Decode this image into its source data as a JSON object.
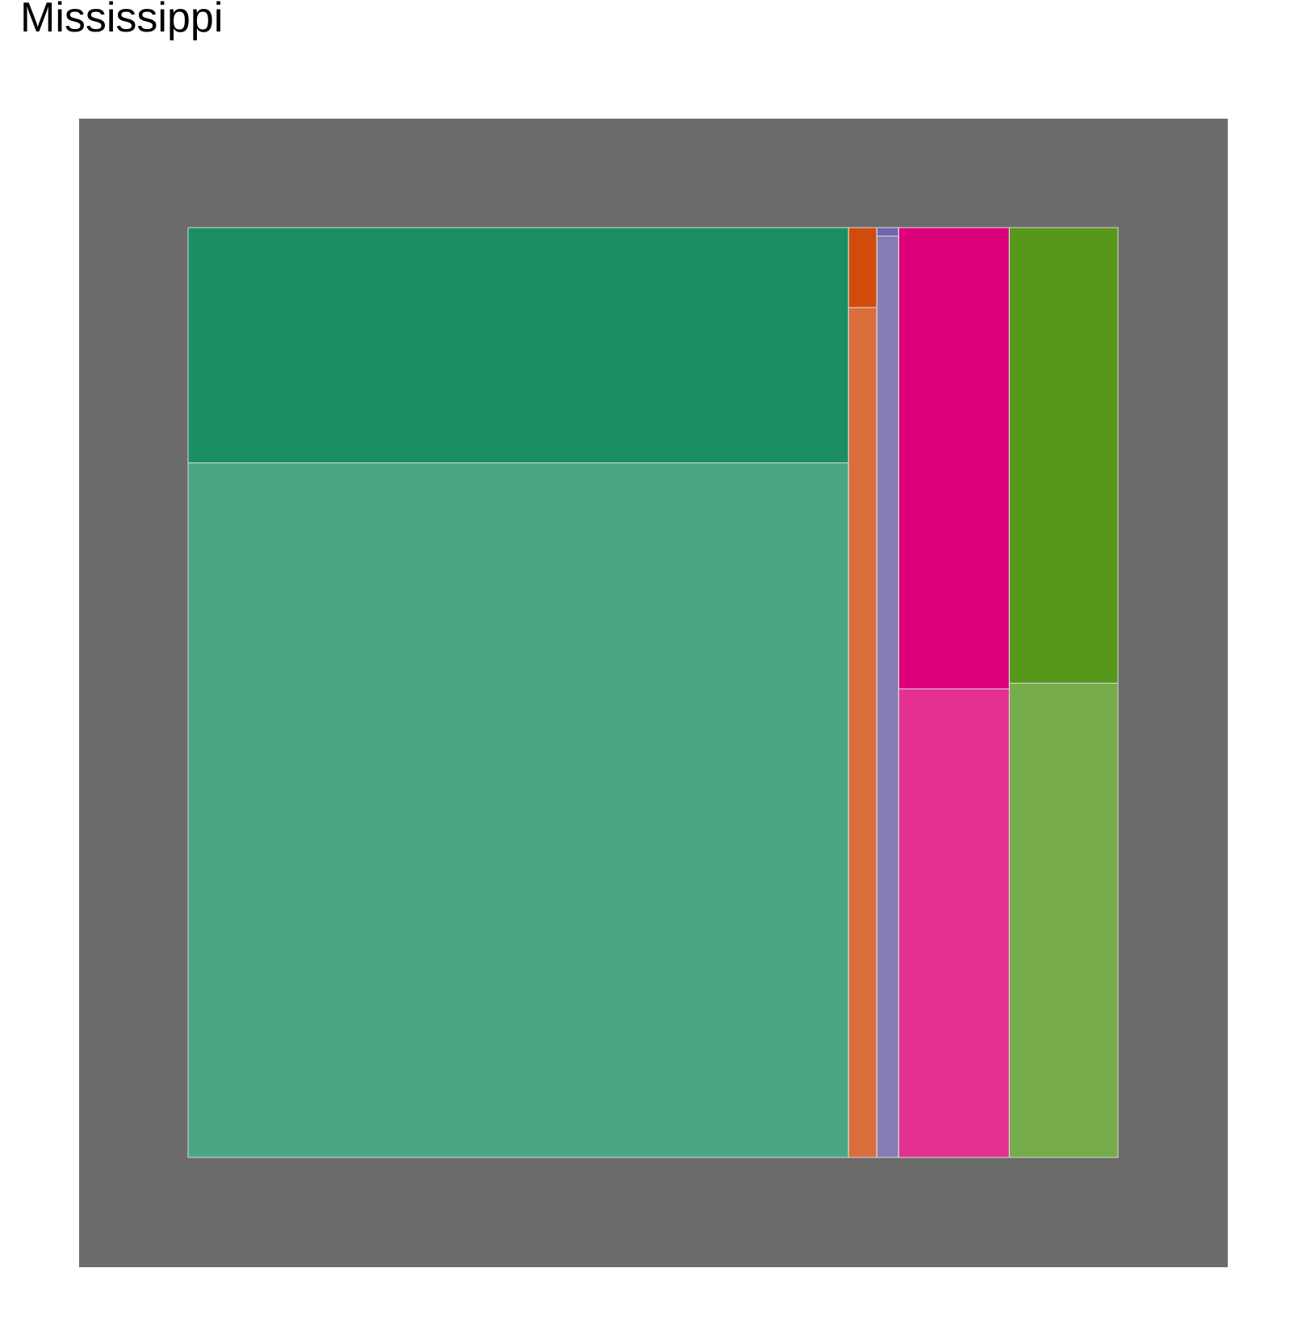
{
  "chart_data": {
    "type": "treemap",
    "title": "Mississippi",
    "panel_color": "#6b6b6b",
    "border_color": "#d9d9d9",
    "groups": [
      {
        "color": "#1b9e77",
        "children": [
          {
            "value": 25.3,
            "color": "#1b8e64"
          },
          {
            "value": 74.7,
            "color": "#4ca684"
          }
        ]
      },
      {
        "color": "#d95f02",
        "children": [
          {
            "value": 0.37,
            "color": "#d14c0c"
          },
          {
            "value": 3.93,
            "color": "#d96d3d"
          }
        ]
      },
      {
        "color": "#7570b3",
        "children": [
          {
            "value": 0.03,
            "color": "#6f67ae"
          },
          {
            "value": 3.27,
            "color": "#867db5"
          }
        ]
      },
      {
        "color": "#e7298a",
        "children": [
          {
            "value": 8.31,
            "color": "#dc007c"
          },
          {
            "value": 8.44,
            "color": "#e43090"
          }
        ]
      },
      {
        "color": "#66a61e",
        "children": [
          {
            "value": 8.06,
            "color": "#579719"
          },
          {
            "value": 8.39,
            "color": "#77ac4a"
          }
        ]
      }
    ]
  }
}
